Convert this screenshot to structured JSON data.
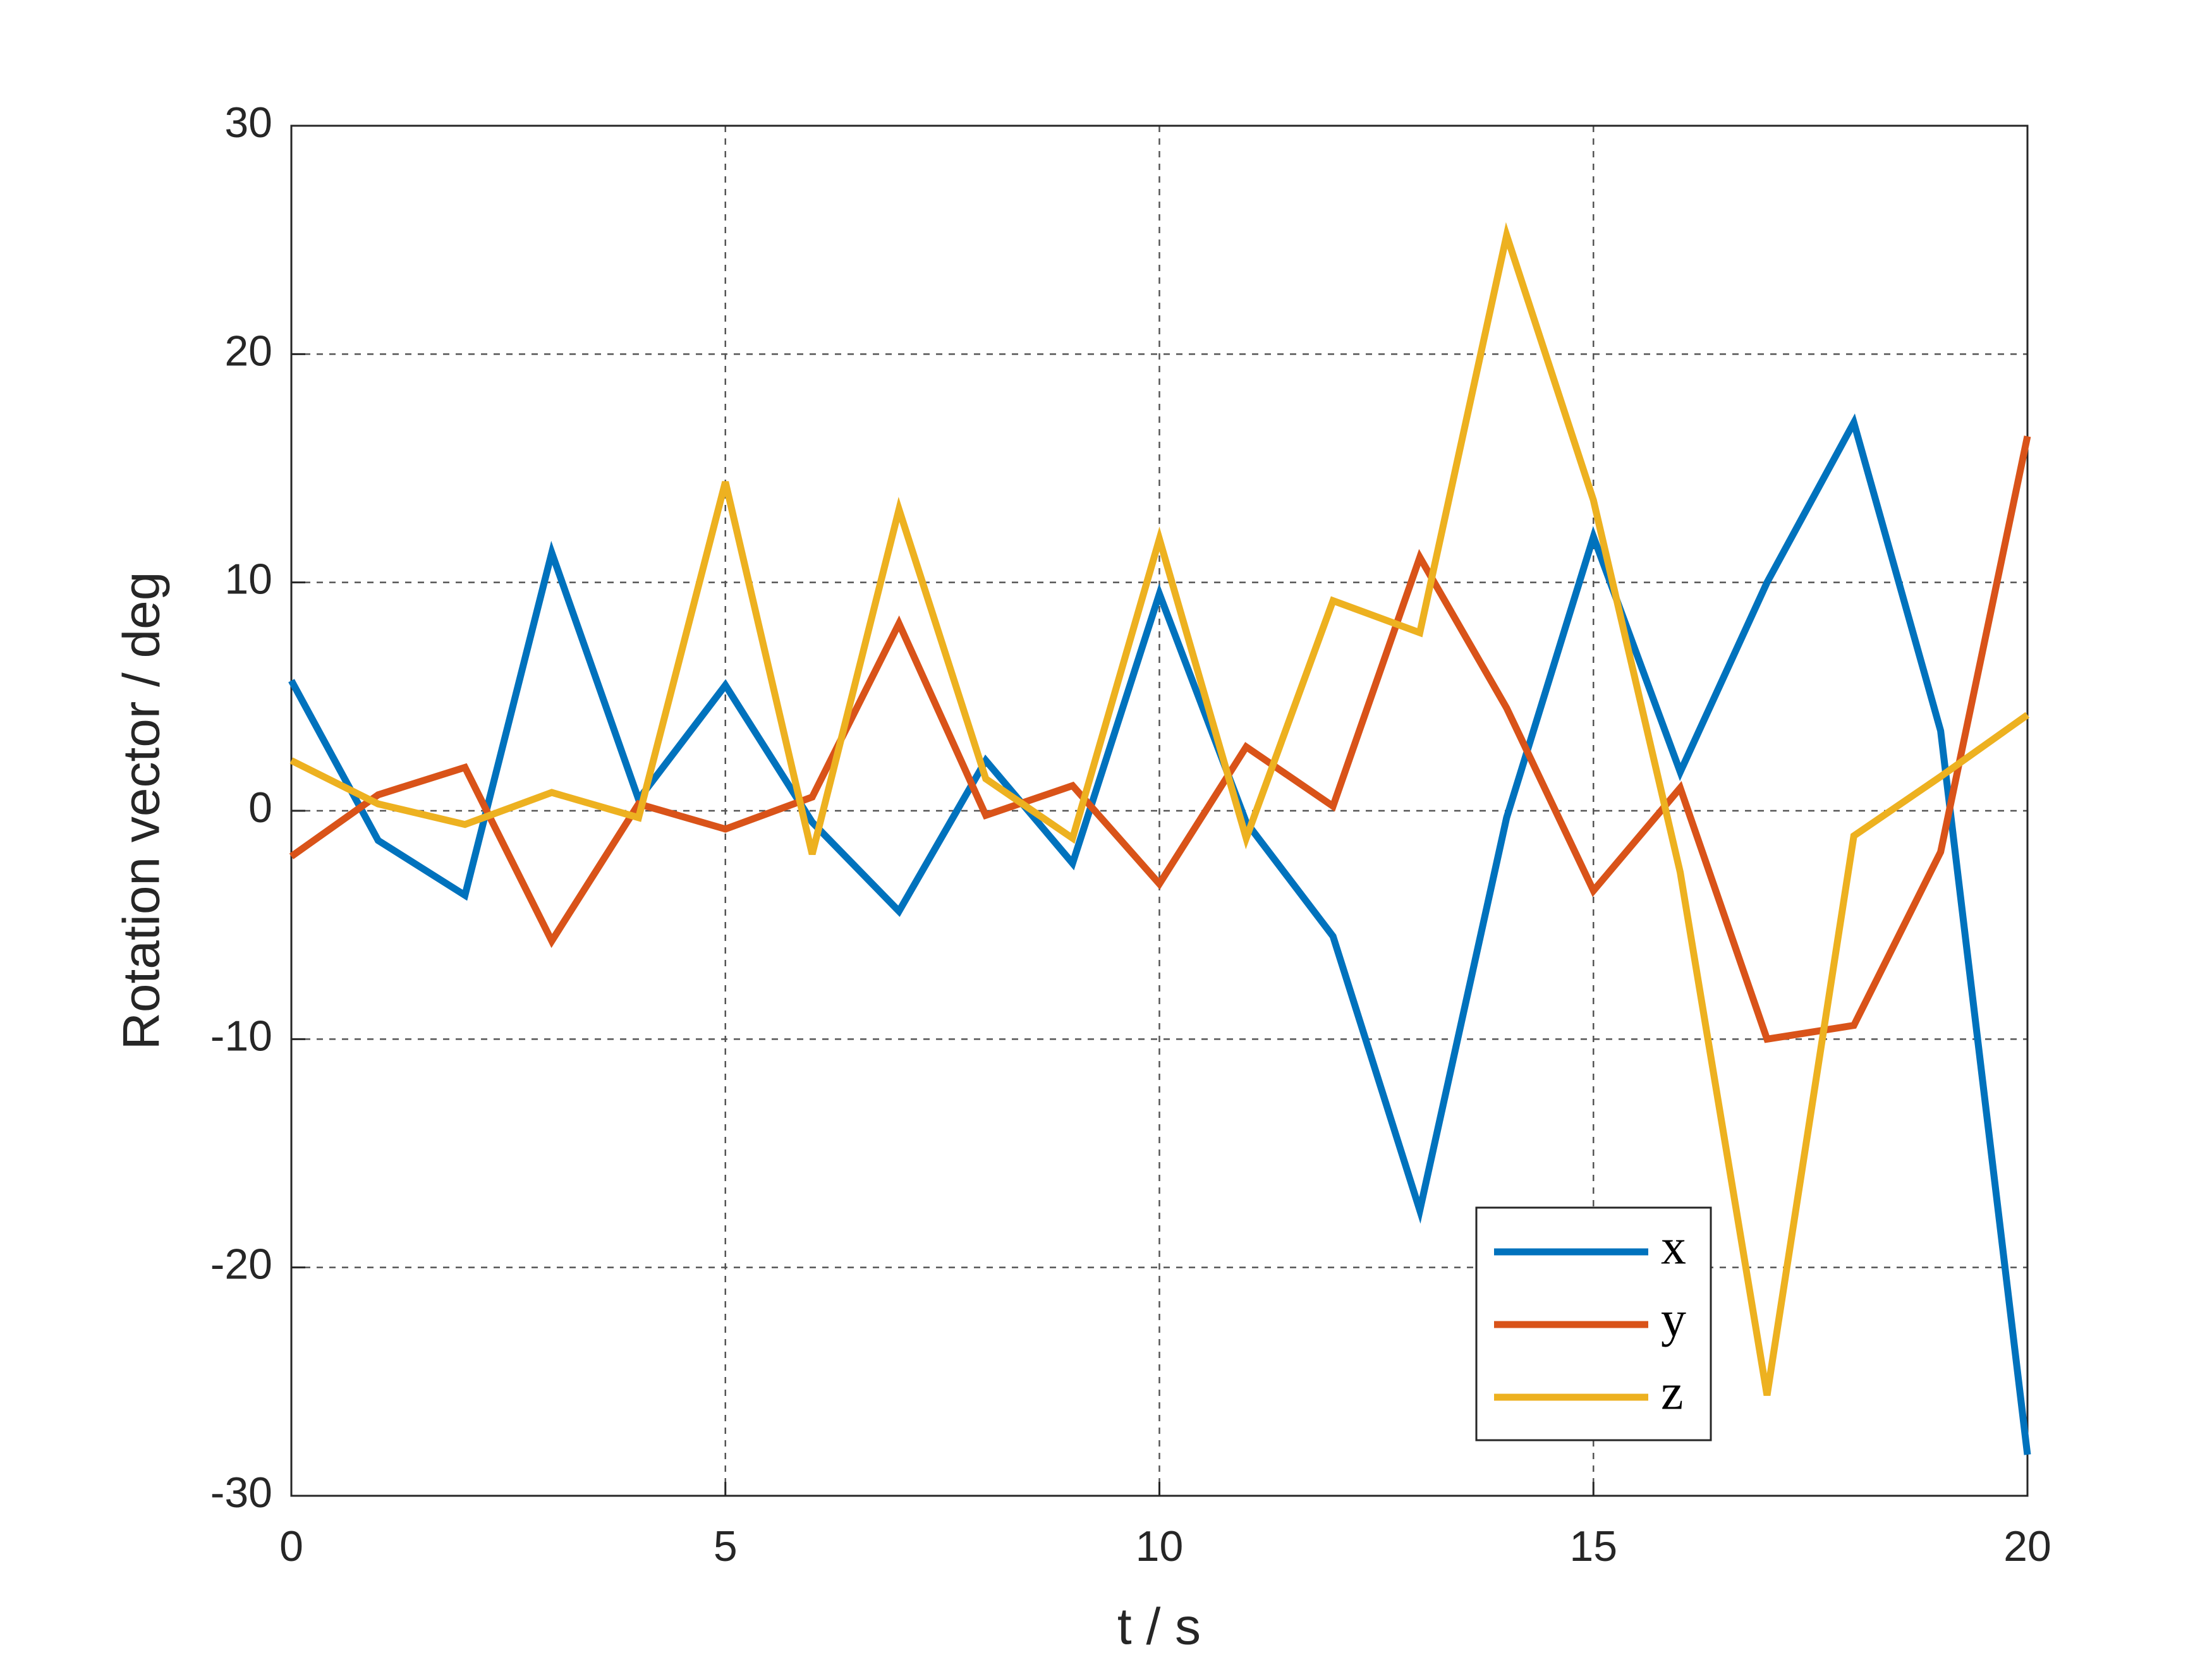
{
  "chart_data": {
    "type": "line",
    "xlabel": "t / s",
    "ylabel": "Rotation vector / deg",
    "x": [
      0,
      1,
      2,
      3,
      4,
      5,
      6,
      7,
      8,
      9,
      10,
      11,
      12,
      13,
      14,
      15,
      16,
      17,
      18,
      19,
      20
    ],
    "series": [
      {
        "name": "x",
        "color": "#0072bd",
        "values": [
          5.7,
          -1.3,
          -3.7,
          11.3,
          0.5,
          5.5,
          -0.5,
          -4.4,
          2.2,
          -2.3,
          9.5,
          -0.5,
          -5.5,
          -17.5,
          -0.3,
          12.0,
          1.7,
          10.0,
          17.0,
          3.5,
          -28.2
        ]
      },
      {
        "name": "y",
        "color": "#d95319",
        "values": [
          -2.0,
          0.7,
          1.9,
          -5.7,
          0.3,
          -0.8,
          0.6,
          8.2,
          -0.2,
          1.1,
          -3.2,
          2.8,
          0.2,
          11.1,
          4.5,
          -3.5,
          1.0,
          -10.0,
          -9.4,
          -1.8,
          16.4
        ]
      },
      {
        "name": "z",
        "color": "#edb120",
        "values": [
          2.2,
          0.3,
          -0.6,
          0.8,
          -0.3,
          14.4,
          -1.9,
          13.2,
          1.4,
          -1.2,
          11.9,
          -1.2,
          9.2,
          7.8,
          25.2,
          13.6,
          -2.7,
          -25.6,
          -1.1,
          1.5,
          4.2
        ]
      }
    ],
    "xlim": [
      0,
      20
    ],
    "xticks": [
      0,
      5,
      10,
      15,
      20
    ],
    "ylim": [
      -30,
      30
    ],
    "yticks": [
      -30,
      -20,
      -10,
      0,
      10,
      20,
      30
    ],
    "grid": true,
    "legend": "lower right"
  }
}
